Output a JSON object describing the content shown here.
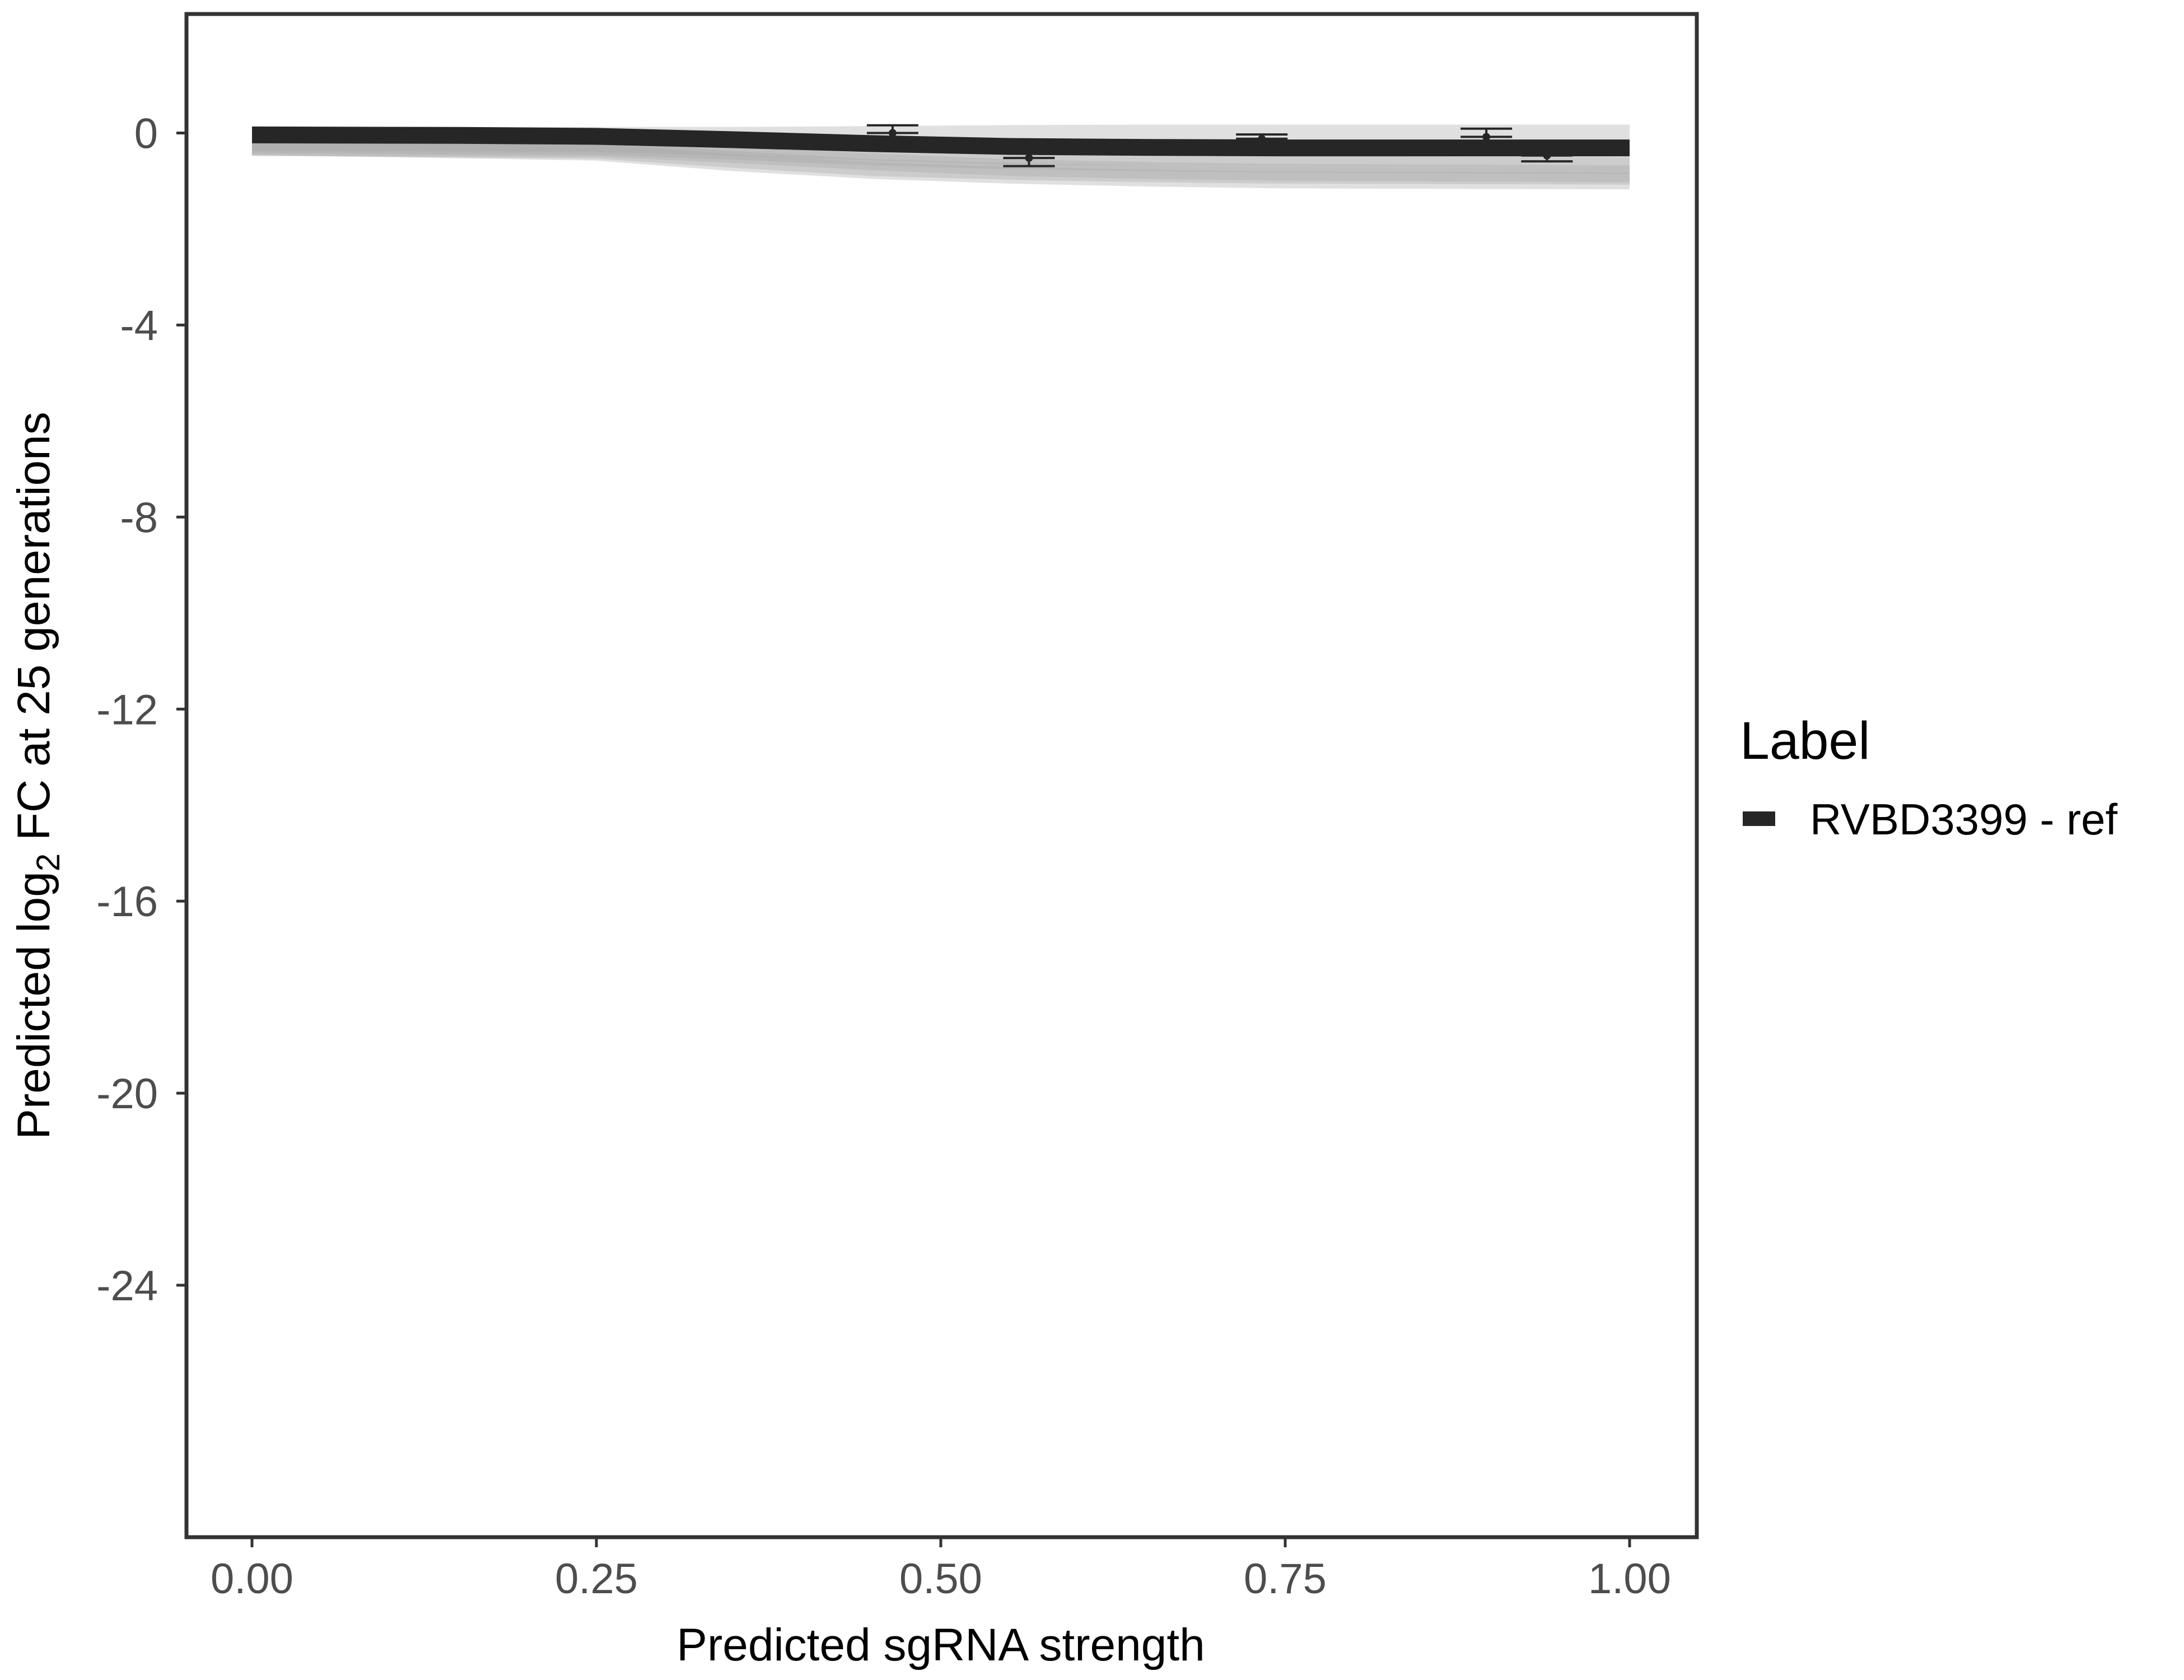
{
  "chart_data": {
    "type": "line",
    "title": "",
    "xlabel": "Predicted sgRNA strength",
    "ylabel": {
      "prefix": "Predicted  log",
      "subscript": "2",
      "suffix": " FC at 25 generations"
    },
    "xlim": [
      -0.05,
      1.05
    ],
    "ylim": [
      -29.3,
      2.5
    ],
    "xticks": [
      "0.00",
      "0.25",
      "0.50",
      "0.75",
      "1.00"
    ],
    "yticks": [
      "0",
      "-4",
      "-8",
      "-12",
      "-16",
      "-20",
      "-24"
    ],
    "grid": false,
    "legend": {
      "title": "Label",
      "position": "right",
      "entries": [
        {
          "label": "RVBD3399 - ref",
          "color": "#262626"
        }
      ]
    },
    "fit_line": {
      "color": "#262626",
      "x": [
        0,
        0.15,
        0.25,
        0.35,
        0.45,
        0.55,
        0.65,
        0.75,
        0.9,
        1.0
      ],
      "y": [
        -0.04,
        -0.05,
        -0.07,
        -0.14,
        -0.22,
        -0.28,
        -0.3,
        -0.31,
        -0.31,
        -0.31
      ]
    },
    "posterior_draws": {
      "color": "#a6a6a6",
      "x": [
        0,
        0.25,
        0.35,
        0.45,
        0.55,
        0.65,
        0.75,
        1.0
      ],
      "y": [
        [
          -0.05,
          -0.05,
          -0.05,
          -0.03,
          -0.01,
          0.0,
          0.0,
          0.0
        ],
        [
          -0.2,
          -0.22,
          -0.3,
          -0.4,
          -0.48,
          -0.5,
          -0.52,
          -0.55
        ],
        [
          -0.25,
          -0.28,
          -0.38,
          -0.5,
          -0.58,
          -0.62,
          -0.65,
          -0.68
        ],
        [
          -0.3,
          -0.32,
          -0.45,
          -0.6,
          -0.72,
          -0.78,
          -0.82,
          -0.85
        ],
        [
          -0.3,
          -0.36,
          -0.55,
          -0.72,
          -0.8,
          -0.85,
          -0.88,
          -0.9
        ],
        [
          -0.28,
          -0.4,
          -0.62,
          -0.78,
          -0.88,
          -0.94,
          -0.98,
          -1.0
        ]
      ]
    },
    "points": {
      "color": "#262626",
      "x": [
        0.465,
        0.564,
        0.733,
        0.896,
        0.94
      ],
      "y": [
        0.0,
        -0.52,
        -0.12,
        -0.08,
        -0.47
      ],
      "err_hi": [
        0.16,
        -0.52,
        -0.03,
        0.09,
        -0.47
      ],
      "err_lo": [
        0.0,
        -0.69,
        -0.12,
        -0.08,
        -0.59
      ]
    }
  }
}
